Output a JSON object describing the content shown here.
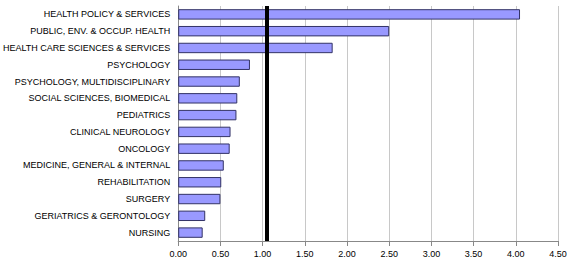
{
  "chart_data": {
    "type": "bar",
    "orientation": "horizontal",
    "categories": [
      "HEALTH POLICY & SERVICES",
      "PUBLIC, ENV. & OCCUP. HEALTH",
      "HEALTH CARE SCIENCES & SERVICES",
      "PSYCHOLOGY",
      "PSYCHOLOGY, MULTIDISCIPLINARY",
      "SOCIAL SCIENCES, BIOMEDICAL",
      "PEDIATRICS",
      "CLINICAL NEUROLOGY",
      "ONCOLOGY",
      "MEDICINE, GENERAL & INTERNAL",
      "REHABILITATION",
      "SURGERY",
      "GERIATRICS & GERONTOLOGY",
      "NURSING"
    ],
    "values": [
      4.05,
      2.5,
      1.83,
      0.85,
      0.73,
      0.7,
      0.69,
      0.62,
      0.61,
      0.54,
      0.51,
      0.5,
      0.32,
      0.29
    ],
    "color": "#9999ff",
    "reference_line": 1.05,
    "xlim": [
      0,
      4.5
    ],
    "xticks": [
      {
        "value": 0,
        "label": "0.00"
      },
      {
        "value": 0.5,
        "label": "0.50"
      },
      {
        "value": 1,
        "label": "1.00"
      },
      {
        "value": 1.5,
        "label": "1.50"
      },
      {
        "value": 2,
        "label": "2.00"
      },
      {
        "value": 2.5,
        "label": "2.50"
      },
      {
        "value": 3,
        "label": "3.00"
      },
      {
        "value": 3.5,
        "label": "3.50"
      },
      {
        "value": 4,
        "label": "4.00"
      },
      {
        "value": 4.5,
        "label": "4.50"
      }
    ],
    "grid": true
  }
}
